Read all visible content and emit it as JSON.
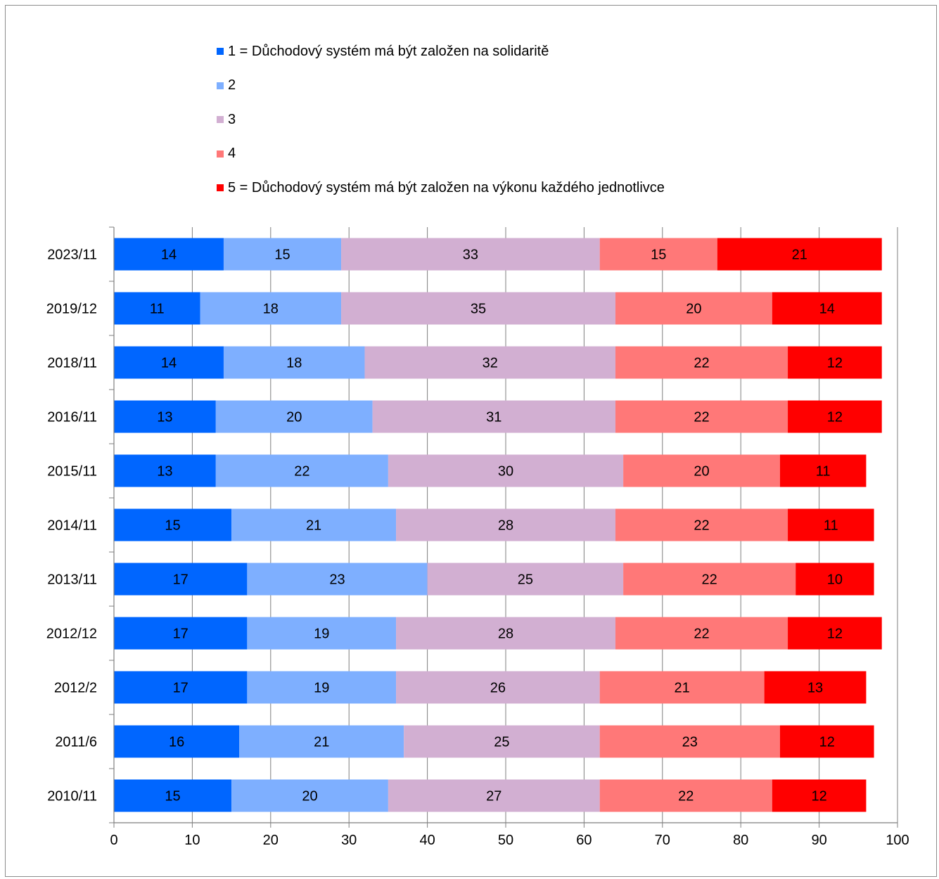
{
  "colors": {
    "series": [
      "#0066ff",
      "#7eafff",
      "#d2afd2",
      "#ff7878",
      "#ff0000"
    ],
    "axis": "#7f7f7f",
    "grid": "#7f7f7f"
  },
  "chart_data": {
    "type": "bar",
    "orientation": "horizontal",
    "stacked": true,
    "categories": [
      "2023/11",
      "2019/12",
      "2018/11",
      "2016/11",
      "2015/11",
      "2014/11",
      "2013/11",
      "2012/12",
      "2012/2",
      "2011/6",
      "2010/11"
    ],
    "series": [
      {
        "name": "1 = Důchodový systém má být založen na solidaritě",
        "values": [
          14,
          11,
          14,
          13,
          13,
          15,
          17,
          17,
          17,
          16,
          15
        ]
      },
      {
        "name": "2",
        "values": [
          15,
          18,
          18,
          20,
          22,
          21,
          23,
          19,
          19,
          21,
          20
        ]
      },
      {
        "name": "3",
        "values": [
          33,
          35,
          32,
          31,
          30,
          28,
          25,
          28,
          26,
          25,
          27
        ]
      },
      {
        "name": "4",
        "values": [
          15,
          20,
          22,
          22,
          20,
          22,
          22,
          22,
          21,
          23,
          22
        ]
      },
      {
        "name": "5 = Důchodový systém má být založen na výkonu každého jednotlivce",
        "values": [
          21,
          14,
          12,
          12,
          11,
          11,
          10,
          12,
          13,
          12,
          12
        ]
      }
    ],
    "xlim": [
      0,
      100
    ],
    "xticks": [
      0,
      10,
      20,
      30,
      40,
      50,
      60,
      70,
      80,
      90,
      100
    ],
    "grid": true,
    "legend_position": "top"
  }
}
